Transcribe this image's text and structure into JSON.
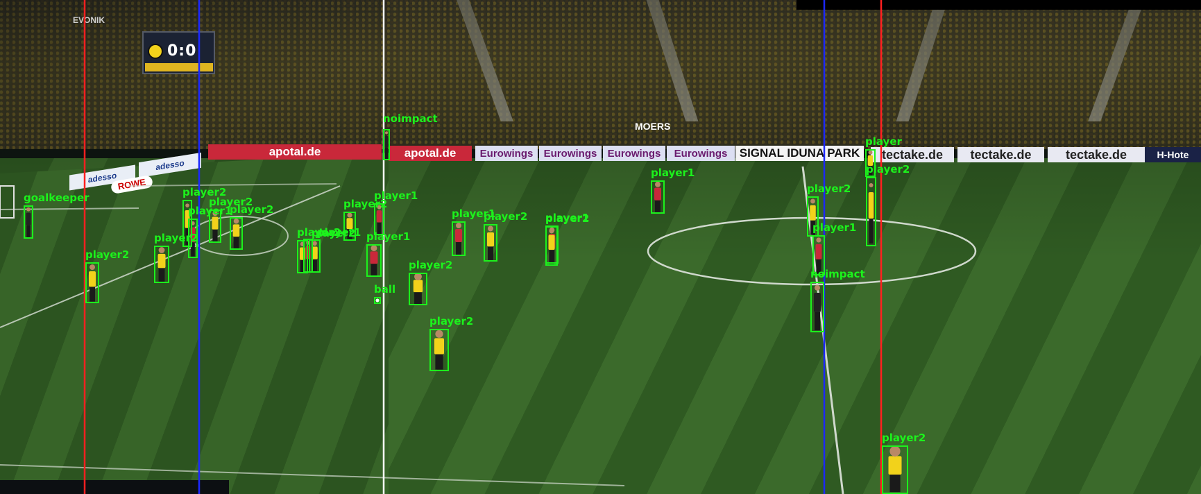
{
  "scoreboard": {
    "score": "0:0"
  },
  "ads": {
    "apotal_1": "apotal.de",
    "apotal_2": "apotal.de",
    "eurowings_1": "Eurowings",
    "eurowings_2": "Eurowings",
    "eurowings_3": "Eurowings",
    "eurowings_4": "Eurowings",
    "signal": "SIGNAL IDUNA PARK",
    "tectake_1": "tectake.de",
    "tectake_2": "tectake.de",
    "tectake_3": "tectake.de",
    "hotel": "H-Hote",
    "adesso_1": "adesso",
    "adesso_2": "adesso",
    "rowe": "ROWE",
    "evonik": "EVONIK",
    "moers": "MOERS"
  },
  "detections": [
    {
      "label": "goalkeeper"
    },
    {
      "label": "player2"
    },
    {
      "label": "player2"
    },
    {
      "label": "player2"
    },
    {
      "label": "player1"
    },
    {
      "label": "player2"
    },
    {
      "label": "player2"
    },
    {
      "label": "player2"
    },
    {
      "label": "player2"
    },
    {
      "label": "player1"
    },
    {
      "label": "player2"
    },
    {
      "label": "player1"
    },
    {
      "label": "player1"
    },
    {
      "label": "ball"
    },
    {
      "label": "player2"
    },
    {
      "label": "player1"
    },
    {
      "label": "player2"
    },
    {
      "label": "noimpact"
    },
    {
      "label": "player2"
    },
    {
      "label": "player1"
    },
    {
      "label": "player1"
    },
    {
      "label": "player2"
    },
    {
      "label": "player1"
    },
    {
      "label": "player"
    },
    {
      "label": "player2"
    },
    {
      "label": "noimpact"
    },
    {
      "label": "player2"
    },
    {
      "label": "player2"
    }
  ],
  "colors": {
    "detection": "#1cf21c",
    "line_red": "#ff2020",
    "line_blue": "#1c28ff",
    "line_white": "#ffffff",
    "home_kit": "#f2d21b",
    "away_kit": "#c9283a"
  }
}
